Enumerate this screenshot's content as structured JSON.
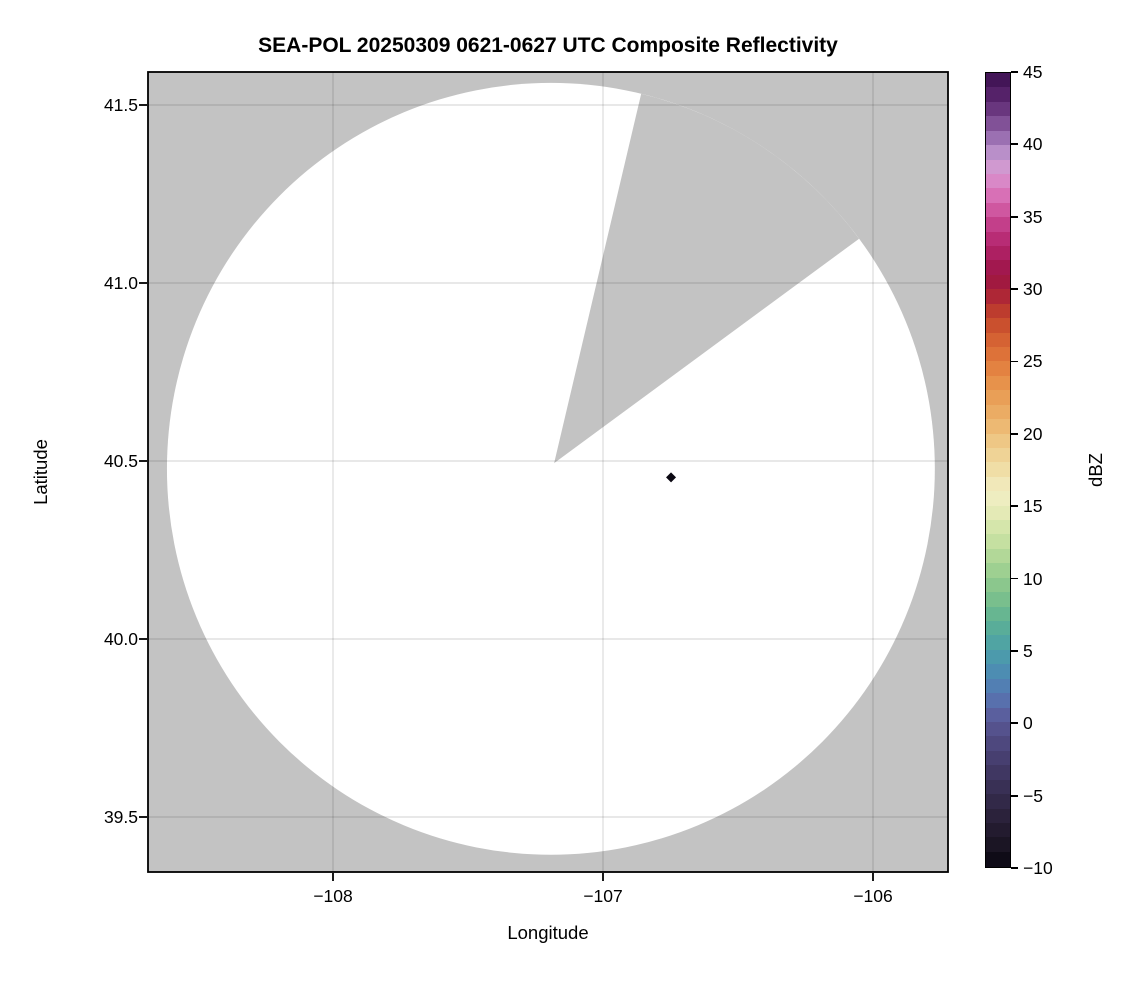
{
  "chart_data": {
    "type": "heatmap",
    "title": "SEA-POL 20250309 0621-0627 UTC Composite Reflectivity",
    "xlabel": "Longitude",
    "ylabel": "Latitude",
    "xlim": [
      -108.69,
      -105.72
    ],
    "ylim": [
      39.35,
      41.59
    ],
    "xticks": {
      "values": [
        -108,
        -107,
        -106
      ],
      "labels": [
        "−108",
        "−107",
        "−106"
      ]
    },
    "yticks": {
      "values": [
        41.5,
        41.0,
        40.5,
        40.0,
        39.5
      ],
      "labels": [
        "41.5",
        "41.0",
        "40.5",
        "40.0",
        "39.5"
      ]
    },
    "grid": true,
    "no_data_color": "#c3c3c3",
    "coverage_color": "#ffffff",
    "coverage": {
      "description": "white radar coverage disk (no echoes detected) surrounded by gray no-data region",
      "center_lon": -107.193,
      "center_lat": 40.478,
      "radius_lon_deg": 1.422,
      "radius_lat_deg": 1.084,
      "sector_vertex_lon": -107.181,
      "sector_vertex_lat": 40.494,
      "missing_sector_azimuth_deg": [
        13.6,
        53.4
      ]
    },
    "echo_points": [
      {
        "lon": -106.748,
        "lat": 40.454,
        "marker": "diamond",
        "color": "#0b0812"
      }
    ],
    "colorbar": {
      "label": "dBZ",
      "min": -10,
      "max": 45,
      "tick_values": [
        45,
        40,
        35,
        30,
        25,
        20,
        15,
        10,
        5,
        0,
        -5,
        -10
      ],
      "tick_labels": [
        "45",
        "40",
        "35",
        "30",
        "25",
        "20",
        "15",
        "10",
        "5",
        "0",
        "−5",
        "−10"
      ],
      "band_step_dbz": 1,
      "colormap_stops": [
        [
          -10,
          "#070410"
        ],
        [
          -9,
          "#17111e"
        ],
        [
          -8,
          "#1f1829"
        ],
        [
          -7,
          "#271e35"
        ],
        [
          -6,
          "#2e2541"
        ],
        [
          -5,
          "#352c4e"
        ],
        [
          -4,
          "#3c335b"
        ],
        [
          -3,
          "#433b69"
        ],
        [
          -2,
          "#4a4377"
        ],
        [
          -1,
          "#514d85"
        ],
        [
          0,
          "#585694"
        ],
        [
          1,
          "#5b68a8"
        ],
        [
          2,
          "#5577b2"
        ],
        [
          3,
          "#4f86b4"
        ],
        [
          4,
          "#4b94b0"
        ],
        [
          5,
          "#4c9fa8"
        ],
        [
          6,
          "#53a89d"
        ],
        [
          7,
          "#5fb194"
        ],
        [
          8,
          "#6fba8e"
        ],
        [
          9,
          "#82c38b"
        ],
        [
          10,
          "#94cb8e"
        ],
        [
          11,
          "#a8d494"
        ],
        [
          12,
          "#bcdc9c"
        ],
        [
          13,
          "#cde3a6"
        ],
        [
          14,
          "#dde8b0"
        ],
        [
          15,
          "#eaecbc"
        ],
        [
          16,
          "#f1edc3"
        ],
        [
          17,
          "#f0e3ae"
        ],
        [
          18,
          "#efd89e"
        ],
        [
          19,
          "#eecd8d"
        ],
        [
          20,
          "#edc07c"
        ],
        [
          21,
          "#ecb26a"
        ],
        [
          22,
          "#eaa55e"
        ],
        [
          23,
          "#e8994f"
        ],
        [
          24,
          "#e58a46"
        ],
        [
          25,
          "#e07a3c"
        ],
        [
          26,
          "#d96a35"
        ],
        [
          27,
          "#d05930"
        ],
        [
          28,
          "#c4462c"
        ],
        [
          29,
          "#b63130"
        ],
        [
          30,
          "#a51d3b"
        ],
        [
          31,
          "#9d1545"
        ],
        [
          32,
          "#a71b58"
        ],
        [
          33,
          "#b2256b"
        ],
        [
          34,
          "#bd337f"
        ],
        [
          35,
          "#c94a94"
        ],
        [
          36,
          "#d563ab"
        ],
        [
          37,
          "#db7cc0"
        ],
        [
          38,
          "#d793cd"
        ],
        [
          39,
          "#c99fd3"
        ],
        [
          40,
          "#a97fbe"
        ],
        [
          41,
          "#8d60a5"
        ],
        [
          42,
          "#744189"
        ],
        [
          43,
          "#5e2a72"
        ],
        [
          44,
          "#4b1a5f"
        ],
        [
          45,
          "#3a0f4e"
        ]
      ]
    }
  }
}
